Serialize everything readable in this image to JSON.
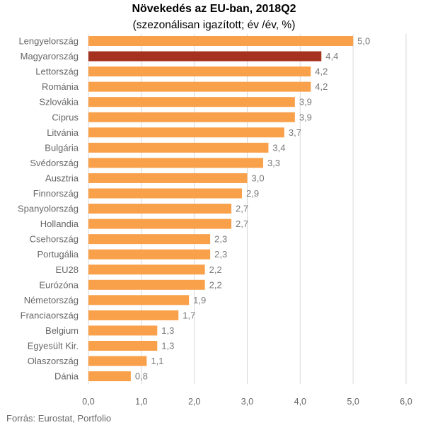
{
  "chart_data": {
    "type": "bar",
    "orientation": "horizontal",
    "title": "Növekedés az EU-ban, 2018Q2",
    "subtitle": "(szezonálisan igazított; év /év, %)",
    "categories": [
      "Lengyelország",
      "Magyarország",
      "Lettország",
      "Románia",
      "Szlovákia",
      "Ciprus",
      "Litvánia",
      "Bulgária",
      "Svédország",
      "Ausztria",
      "Finnország",
      "Spanyolország",
      "Hollandia",
      "Csehország",
      "Portugália",
      "EU28",
      "Eurózóna",
      "Németország",
      "Franciaország",
      "Belgium",
      "Egyesült Kir.",
      "Olaszország",
      "Dánia"
    ],
    "values": [
      5.0,
      4.4,
      4.2,
      4.2,
      3.9,
      3.9,
      3.7,
      3.4,
      3.3,
      3.0,
      2.9,
      2.7,
      2.7,
      2.3,
      2.3,
      2.2,
      2.2,
      1.9,
      1.7,
      1.3,
      1.3,
      1.1,
      0.8
    ],
    "value_labels": [
      "5,0",
      "4,4",
      "4,2",
      "4,2",
      "3,9",
      "3,9",
      "3,7",
      "3,4",
      "3,3",
      "3,0",
      "2,9",
      "2,7",
      "2,7",
      "2,3",
      "2,3",
      "2,2",
      "2,2",
      "1,9",
      "1,7",
      "1,3",
      "1,3",
      "1,1",
      "0,8"
    ],
    "xlim": [
      0,
      6
    ],
    "xticks": [
      0,
      1,
      2,
      3,
      4,
      5,
      6
    ],
    "xtick_labels": [
      "0,0",
      "1,0",
      "2,0",
      "3,0",
      "4,0",
      "5,0",
      "6,0"
    ],
    "grid": true,
    "bar_color": "#F9A04A",
    "highlight_category": "Magyarország",
    "highlight_color": "#A5321F"
  },
  "source": "Forrás: Eurostat, Portfolio"
}
